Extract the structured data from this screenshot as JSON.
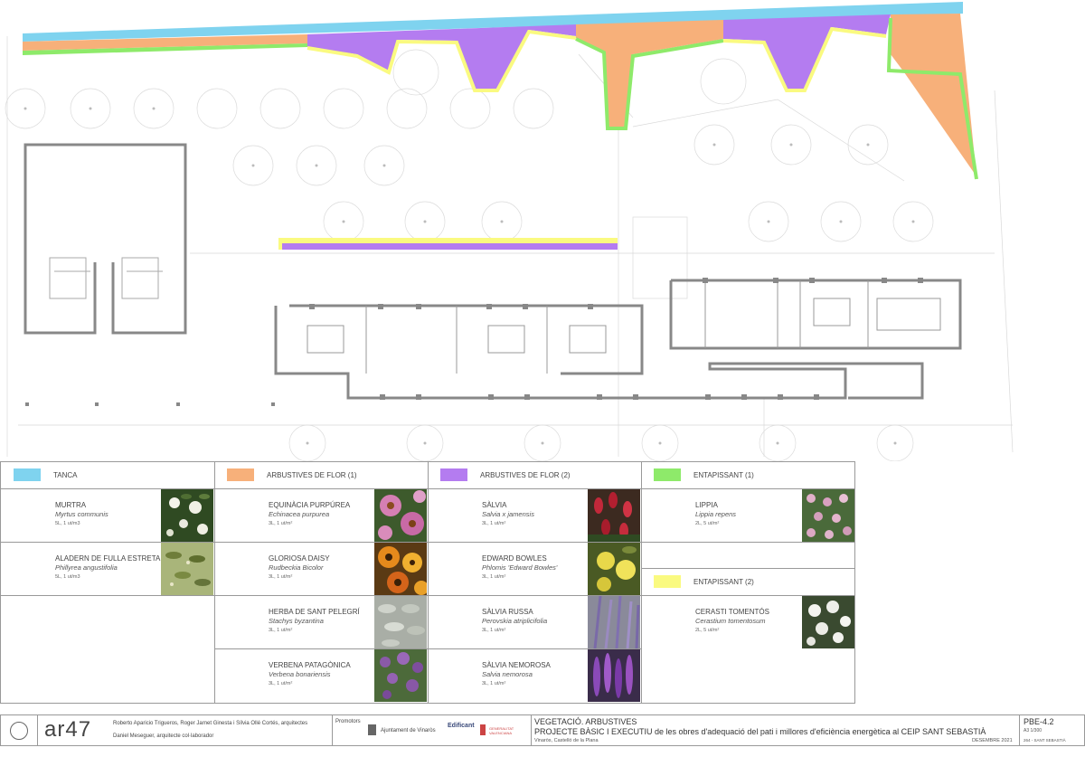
{
  "colors": {
    "tanca": "#7fd3ef",
    "flor1": "#f7b07a",
    "flor2": "#b47cf0",
    "entapissant1": "#8eea6a",
    "entapissant2": "#fafa80"
  },
  "legend": {
    "tanca": {
      "title": "TANCA"
    },
    "flor1": {
      "title": "ARBUSTIVES DE FLOR (1)"
    },
    "flor2": {
      "title": "ARBUSTIVES DE FLOR (2)"
    },
    "ent1": {
      "title": "ENTAPISSANT (1)"
    },
    "ent2": {
      "title": "ENTAPISSANT (2)"
    },
    "col1": [
      {
        "name": "MURTRA",
        "latin": "Myrtus communis",
        "qty": "5L, 1 ut/m3"
      },
      {
        "name": "ALADERN DE FULLA ESTRETA",
        "latin": "Phillyrea angustifolia",
        "qty": "5L, 1 ut/m3"
      }
    ],
    "col2": [
      {
        "name": "EQUINÀCIA PURPÚREA",
        "latin": "Echinacea purpurea",
        "qty": "3L, 1 ut/m²"
      },
      {
        "name": "GLORIOSA DAISY",
        "latin": "Rudbeckia Bicolor",
        "qty": "3L, 1 ut/m²"
      },
      {
        "name": "HERBA DE SANT PELEGRÍ",
        "latin": "Stachys byzantina",
        "qty": "3L, 1 ut/m²"
      },
      {
        "name": "VERBENA PATAGÒNICA",
        "latin": "Verbena bonariensis",
        "qty": "3L, 1 ut/m²"
      }
    ],
    "col3": [
      {
        "name": "SÀLVIA",
        "latin": "Salvia x jamensis",
        "qty": "3L, 1 ut/m²"
      },
      {
        "name": "EDWARD BOWLES",
        "latin": "Phlomis 'Edward Bowles'",
        "qty": "3L, 1 ut/m²"
      },
      {
        "name": "SÀLVIA RUSSA",
        "latin": "Perovskia atriplicifolia",
        "qty": "3L, 1 ut/m²"
      },
      {
        "name": "SÀLVIA NEMOROSA",
        "latin": "Salvia nemorosa",
        "qty": "3L, 1 ut/m²"
      }
    ],
    "col4": [
      {
        "name": "LIPPIA",
        "latin": "Lippia repens",
        "qty": "2L, 5 ut/m²"
      },
      {
        "name": "CERASTI TOMENTÓS",
        "latin": "Cerastium tomentosum",
        "qty": "2L, 5 ut/m²"
      }
    ]
  },
  "titleblock": {
    "logo": "ar47",
    "authors": "Roberto Aparicio Trigueros, Roger Jarnet Ginesta  i Sílvia Ollé Cortés, arquitectes",
    "collaborator": "Daniel Meseguer, arquitecte col·laborador",
    "promotors_label": "Promotors",
    "promotor1": "Ajuntament de Vinaròs",
    "promotor2": "Edificant",
    "promotor3": "GENERALITAT VALENCIANA",
    "title": "VEGETACIÓ. ARBUSTIVES",
    "project": "PROJECTE BÀSIC I EXECUTIU de les obres d'adequació del pati i millores d'eficiència energètica al CEIP SANT SEBASTIÀ",
    "location": "Vinaròs, Castelló de la Plana",
    "date": "DESEMBRE 2021",
    "sheet": "PBE-4.2",
    "scale": "A3 1/300",
    "code": "264 - SANT SEBASTIÀ"
  }
}
